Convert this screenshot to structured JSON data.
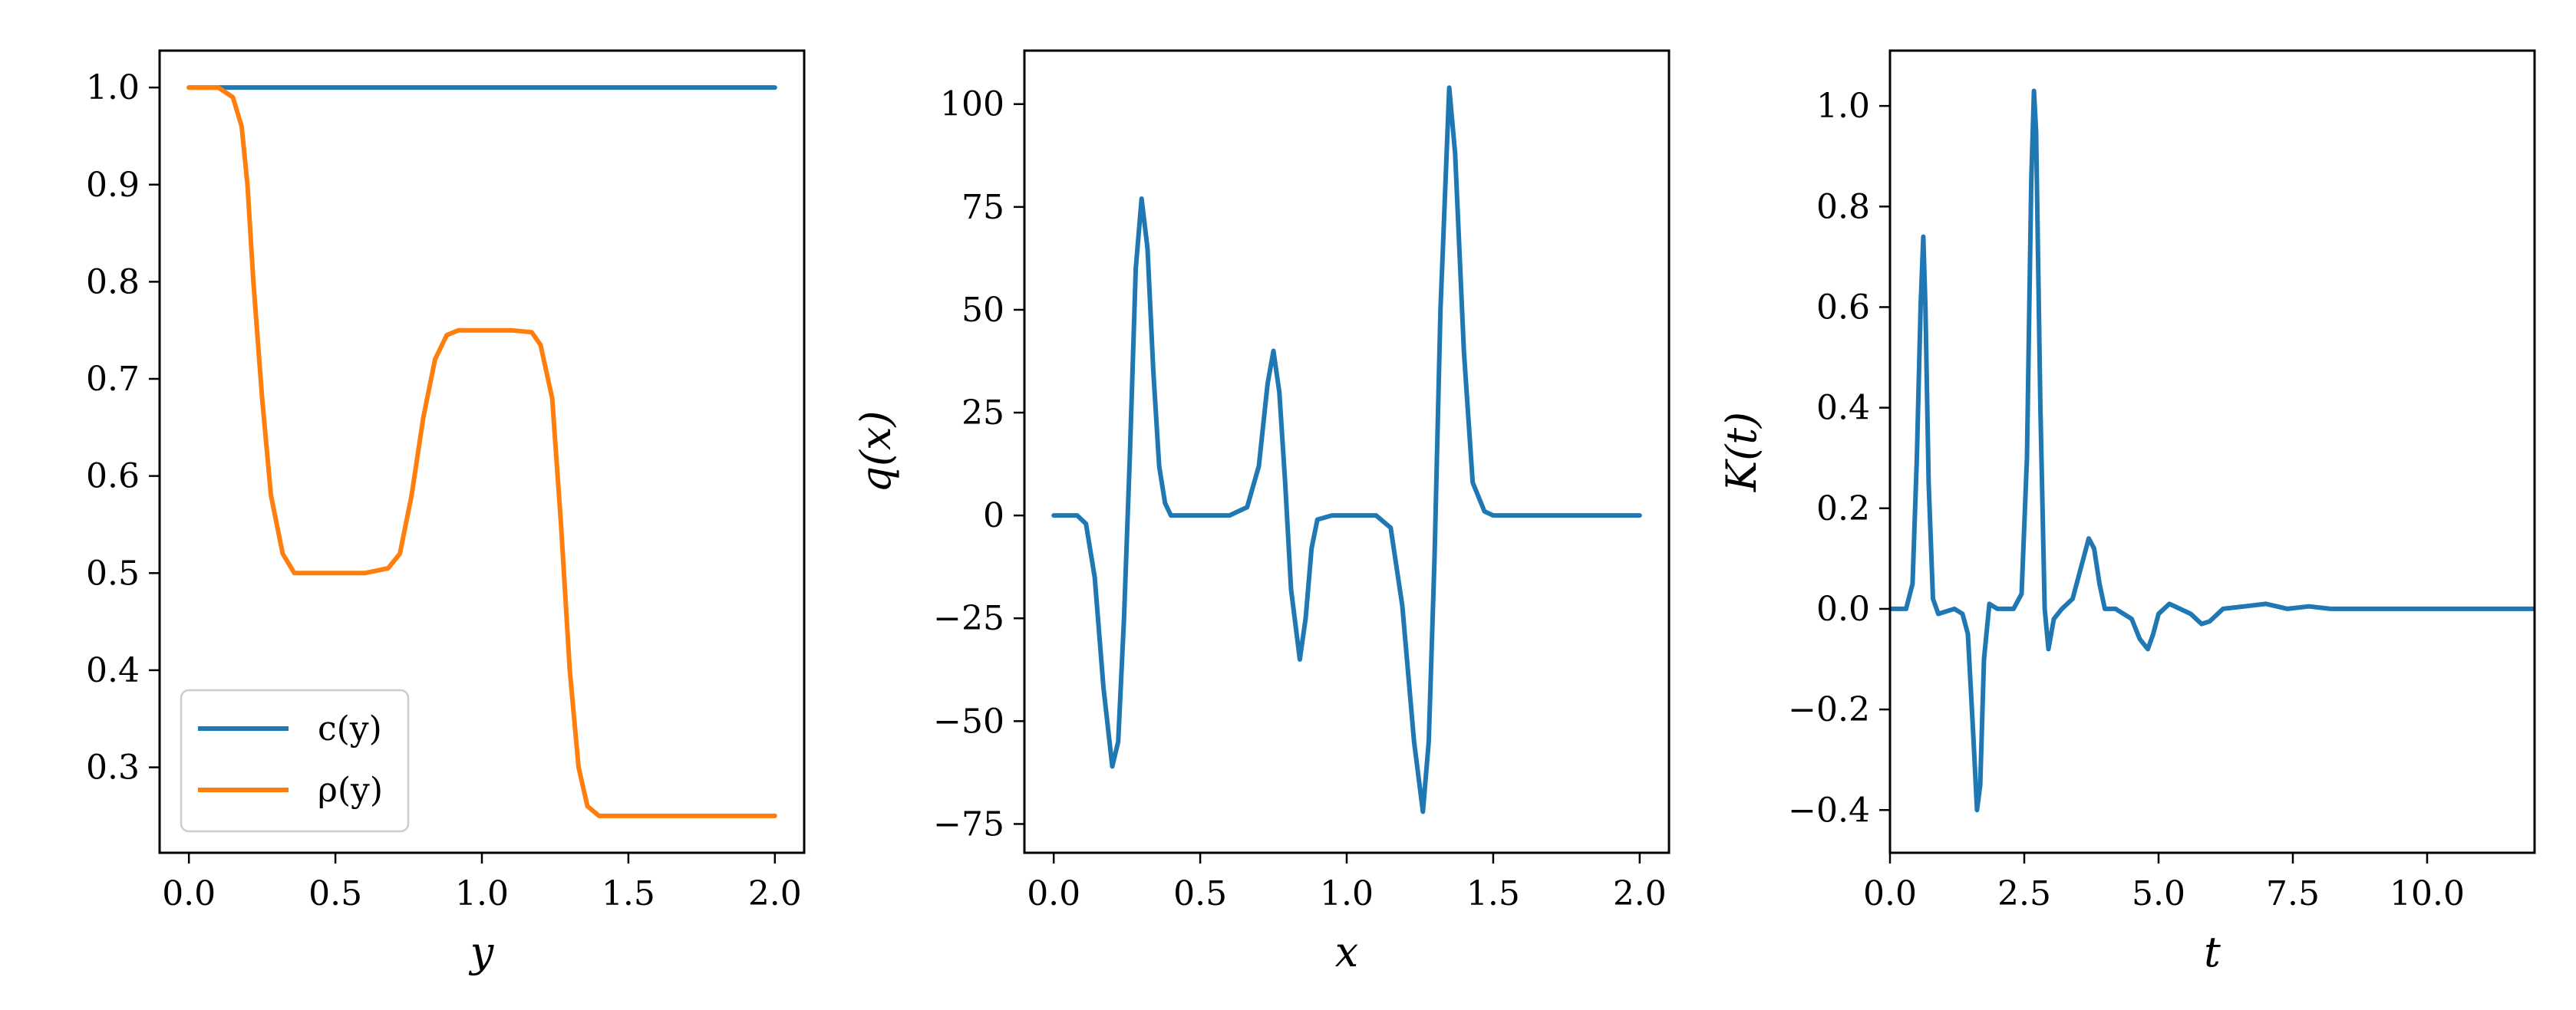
{
  "chart_data": [
    {
      "type": "line",
      "xlabel": "y",
      "ylabel": "",
      "xlim": [
        -0.1,
        2.1
      ],
      "ylim": [
        0.212,
        1.038
      ],
      "xticks": [
        0.0,
        0.5,
        1.0,
        1.5,
        2.0
      ],
      "xtick_labels": [
        "0.0",
        "0.5",
        "1.0",
        "1.5",
        "2.0"
      ],
      "yticks": [
        0.3,
        0.4,
        0.5,
        0.6,
        0.7,
        0.8,
        0.9,
        1.0
      ],
      "ytick_labels": [
        "0.3",
        "0.4",
        "0.5",
        "0.6",
        "0.7",
        "0.8",
        "0.9",
        "1.0"
      ],
      "legend_position": "lower-left",
      "series": [
        {
          "name": "c(y)",
          "color": "#1f77b4",
          "points": [
            [
              0.0,
              1.0
            ],
            [
              2.0,
              1.0
            ]
          ]
        },
        {
          "name": "ρ(y)",
          "color": "#ff7f0e",
          "points": [
            [
              0.0,
              1.0
            ],
            [
              0.1,
              1.0
            ],
            [
              0.15,
              0.99
            ],
            [
              0.18,
              0.96
            ],
            [
              0.2,
              0.9
            ],
            [
              0.22,
              0.8
            ],
            [
              0.25,
              0.68
            ],
            [
              0.28,
              0.58
            ],
            [
              0.32,
              0.52
            ],
            [
              0.36,
              0.5
            ],
            [
              0.4,
              0.5
            ],
            [
              0.5,
              0.5
            ],
            [
              0.6,
              0.5
            ],
            [
              0.68,
              0.505
            ],
            [
              0.72,
              0.52
            ],
            [
              0.76,
              0.58
            ],
            [
              0.8,
              0.66
            ],
            [
              0.84,
              0.72
            ],
            [
              0.88,
              0.745
            ],
            [
              0.92,
              0.75
            ],
            [
              1.0,
              0.75
            ],
            [
              1.1,
              0.75
            ],
            [
              1.17,
              0.748
            ],
            [
              1.2,
              0.735
            ],
            [
              1.24,
              0.68
            ],
            [
              1.27,
              0.55
            ],
            [
              1.3,
              0.4
            ],
            [
              1.33,
              0.3
            ],
            [
              1.36,
              0.26
            ],
            [
              1.4,
              0.25
            ],
            [
              1.5,
              0.25
            ],
            [
              1.75,
              0.25
            ],
            [
              2.0,
              0.25
            ]
          ]
        }
      ]
    },
    {
      "type": "line",
      "xlabel": "x",
      "ylabel": "q(x)",
      "xlim": [
        -0.1,
        2.1
      ],
      "ylim": [
        -82,
        113
      ],
      "xticks": [
        0.0,
        0.5,
        1.0,
        1.5,
        2.0
      ],
      "xtick_labels": [
        "0.0",
        "0.5",
        "1.0",
        "1.5",
        "2.0"
      ],
      "yticks": [
        -75,
        -50,
        -25,
        0,
        25,
        50,
        75,
        100
      ],
      "ytick_labels": [
        "−75",
        "−50",
        "−25",
        "0",
        "25",
        "50",
        "75",
        "100"
      ],
      "series": [
        {
          "name": "",
          "color": "#1f77b4",
          "points": [
            [
              0.0,
              0
            ],
            [
              0.08,
              0
            ],
            [
              0.11,
              -2
            ],
            [
              0.14,
              -15
            ],
            [
              0.17,
              -42
            ],
            [
              0.2,
              -61
            ],
            [
              0.22,
              -55
            ],
            [
              0.24,
              -25
            ],
            [
              0.26,
              15
            ],
            [
              0.28,
              60
            ],
            [
              0.3,
              77
            ],
            [
              0.32,
              65
            ],
            [
              0.34,
              35
            ],
            [
              0.36,
              12
            ],
            [
              0.38,
              3
            ],
            [
              0.4,
              0
            ],
            [
              0.5,
              0
            ],
            [
              0.6,
              0
            ],
            [
              0.66,
              2
            ],
            [
              0.7,
              12
            ],
            [
              0.73,
              32
            ],
            [
              0.75,
              40
            ],
            [
              0.77,
              30
            ],
            [
              0.79,
              8
            ],
            [
              0.81,
              -18
            ],
            [
              0.84,
              -35
            ],
            [
              0.86,
              -25
            ],
            [
              0.88,
              -8
            ],
            [
              0.9,
              -1
            ],
            [
              0.95,
              0
            ],
            [
              1.1,
              0
            ],
            [
              1.15,
              -3
            ],
            [
              1.19,
              -22
            ],
            [
              1.23,
              -55
            ],
            [
              1.26,
              -72
            ],
            [
              1.28,
              -55
            ],
            [
              1.3,
              -10
            ],
            [
              1.32,
              50
            ],
            [
              1.35,
              104
            ],
            [
              1.37,
              88
            ],
            [
              1.4,
              40
            ],
            [
              1.43,
              8
            ],
            [
              1.47,
              1
            ],
            [
              1.5,
              0
            ],
            [
              1.75,
              0
            ],
            [
              2.0,
              0
            ]
          ]
        }
      ]
    },
    {
      "type": "line",
      "xlabel": "t",
      "ylabel": "K(t)",
      "xlim": [
        0.0,
        12.0
      ],
      "ylim": [
        -0.485,
        1.11
      ],
      "xticks": [
        0.0,
        2.5,
        5.0,
        7.5,
        10.0
      ],
      "xtick_labels": [
        "0.0",
        "2.5",
        "5.0",
        "7.5",
        "10.0"
      ],
      "yticks": [
        -0.4,
        -0.2,
        0.0,
        0.2,
        0.4,
        0.6,
        0.8,
        1.0
      ],
      "ytick_labels": [
        "−0.4",
        "−0.2",
        "0.0",
        "0.2",
        "0.4",
        "0.6",
        "0.8",
        "1.0"
      ],
      "series": [
        {
          "name": "",
          "color": "#1f77b4",
          "points": [
            [
              0.0,
              0
            ],
            [
              0.3,
              0
            ],
            [
              0.42,
              0.05
            ],
            [
              0.5,
              0.3
            ],
            [
              0.57,
              0.6
            ],
            [
              0.62,
              0.74
            ],
            [
              0.66,
              0.6
            ],
            [
              0.72,
              0.25
            ],
            [
              0.8,
              0.02
            ],
            [
              0.9,
              -0.01
            ],
            [
              1.2,
              0
            ],
            [
              1.35,
              -0.01
            ],
            [
              1.45,
              -0.05
            ],
            [
              1.55,
              -0.25
            ],
            [
              1.62,
              -0.4
            ],
            [
              1.68,
              -0.35
            ],
            [
              1.75,
              -0.1
            ],
            [
              1.85,
              0.01
            ],
            [
              2.0,
              0
            ],
            [
              2.3,
              0
            ],
            [
              2.45,
              0.03
            ],
            [
              2.55,
              0.3
            ],
            [
              2.63,
              0.85
            ],
            [
              2.68,
              1.03
            ],
            [
              2.72,
              0.95
            ],
            [
              2.8,
              0.4
            ],
            [
              2.88,
              0.0
            ],
            [
              2.95,
              -0.08
            ],
            [
              3.05,
              -0.02
            ],
            [
              3.2,
              0.0
            ],
            [
              3.4,
              0.02
            ],
            [
              3.55,
              0.08
            ],
            [
              3.7,
              0.14
            ],
            [
              3.8,
              0.12
            ],
            [
              3.9,
              0.05
            ],
            [
              4.0,
              0.0
            ],
            [
              4.2,
              0
            ],
            [
              4.5,
              -0.02
            ],
            [
              4.65,
              -0.06
            ],
            [
              4.8,
              -0.08
            ],
            [
              4.9,
              -0.05
            ],
            [
              5.0,
              -0.01
            ],
            [
              5.2,
              0.01
            ],
            [
              5.4,
              0.0
            ],
            [
              5.6,
              -0.01
            ],
            [
              5.8,
              -0.03
            ],
            [
              5.95,
              -0.025
            ],
            [
              6.2,
              0.0
            ],
            [
              6.6,
              0.005
            ],
            [
              7.0,
              0.01
            ],
            [
              7.4,
              0.0
            ],
            [
              7.8,
              0.005
            ],
            [
              8.2,
              0.0
            ],
            [
              9.0,
              0
            ],
            [
              10.0,
              0
            ],
            [
              12.0,
              0
            ]
          ]
        }
      ]
    }
  ]
}
